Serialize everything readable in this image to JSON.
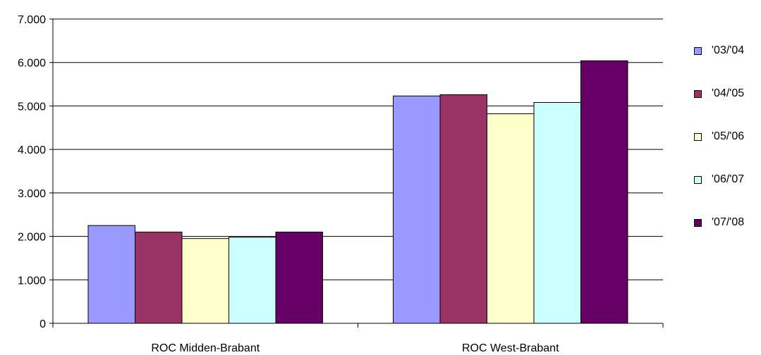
{
  "chart_data": {
    "type": "bar",
    "categories": [
      "ROC Midden-Brabant",
      "ROC West-Brabant"
    ],
    "series": [
      {
        "name": "'03/'04",
        "color": "#9999ff",
        "values": [
          2250,
          5230
        ]
      },
      {
        "name": "'04/'05",
        "color": "#993366",
        "values": [
          2100,
          5260
        ]
      },
      {
        "name": "'05/'06",
        "color": "#ffffcc",
        "values": [
          1950,
          4820
        ]
      },
      {
        "name": "'06/'07",
        "color": "#ccffff",
        "values": [
          1980,
          5080
        ]
      },
      {
        "name": "'07/'08",
        "color": "#660066",
        "values": [
          2100,
          6040
        ]
      }
    ],
    "yticks": [
      "0",
      "1.000",
      "2.000",
      "3.000",
      "4.000",
      "5.000",
      "6.000",
      "7.000"
    ],
    "ylim": [
      0,
      7000
    ],
    "grid": true,
    "legend": "right",
    "title": "",
    "xlabel": "",
    "ylabel": ""
  }
}
